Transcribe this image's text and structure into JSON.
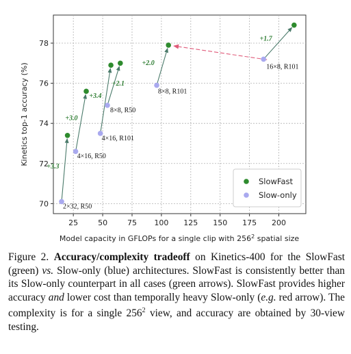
{
  "chart_data": {
    "type": "scatter",
    "title": "",
    "xlabel": "Model capacity in GFLOPs for a single clip with 256",
    "xlabel_sup": "2",
    "xlabel_suffix": " spatial size",
    "ylabel": "Kinetics top-1 accuracy (%)",
    "xlim": [
      8,
      223
    ],
    "ylim": [
      69.5,
      79.4
    ],
    "xticks": [
      25,
      50,
      75,
      100,
      125,
      150,
      175,
      200
    ],
    "yticks": [
      70,
      72,
      74,
      76,
      78
    ],
    "grid": true,
    "legend_placement": "bottom-right",
    "colors": {
      "slowfast": "#2e8b2e",
      "slow_only": "#a9a9ef",
      "arrow_green": "#4a7a6a",
      "arrow_red": "#e05b7a"
    },
    "series": [
      {
        "name": "SlowFast",
        "points": [
          {
            "x": 20,
            "y": 73.4
          },
          {
            "x": 36,
            "y": 75.6
          },
          {
            "x": 57,
            "y": 76.9
          },
          {
            "x": 65,
            "y": 77.0
          },
          {
            "x": 106,
            "y": 77.9
          },
          {
            "x": 213,
            "y": 78.9
          }
        ]
      },
      {
        "name": "Slow-only",
        "points": [
          {
            "x": 15,
            "y": 70.1,
            "label": "2×32, R50"
          },
          {
            "x": 27,
            "y": 72.6,
            "label": "4×16, R50"
          },
          {
            "x": 48,
            "y": 73.5,
            "label": "4×16, R101"
          },
          {
            "x": 54,
            "y": 74.9,
            "label": "8×8, R50"
          },
          {
            "x": 96,
            "y": 75.9,
            "label": "8×8, R101"
          },
          {
            "x": 187,
            "y": 77.2,
            "label": "16×8, R101"
          }
        ]
      }
    ],
    "gain_arrows": [
      {
        "from": [
          15,
          70.1
        ],
        "to": [
          20,
          73.4
        ],
        "label": "+3.3"
      },
      {
        "from": [
          27,
          72.6
        ],
        "to": [
          36,
          75.6
        ],
        "label": "+3.0"
      },
      {
        "from": [
          48,
          73.5
        ],
        "to": [
          57,
          76.9
        ],
        "label": "+3.4"
      },
      {
        "from": [
          54,
          74.9
        ],
        "to": [
          65,
          77.0
        ],
        "label": "+2.1"
      },
      {
        "from": [
          96,
          75.9
        ],
        "to": [
          106,
          77.9
        ],
        "label": "+2.0"
      },
      {
        "from": [
          187,
          77.2
        ],
        "to": [
          213,
          78.9
        ],
        "label": "+1.7"
      }
    ],
    "red_arrow": {
      "from": [
        187,
        77.2
      ],
      "to": [
        106,
        77.9
      ]
    }
  },
  "caption": {
    "figure_label": "Figure 2.",
    "bold_title": "Accuracy/complexity tradeoff",
    "text1": " on Kinetics-400 for the SlowFast (green) ",
    "vs": "vs.",
    "text2": " Slow-only (blue) architectures. SlowFast is consistently better than its Slow-only counterpart in all cases (green arrows). SlowFast provides higher accuracy ",
    "and": "and",
    "text3": " lower cost than temporally heavy Slow-only (",
    "eg": "e.g.",
    "text4": " red arrow). The complexity is for a single 256",
    "sup": "2",
    "text5": " view, and accuracy are obtained by 30-view testing."
  }
}
